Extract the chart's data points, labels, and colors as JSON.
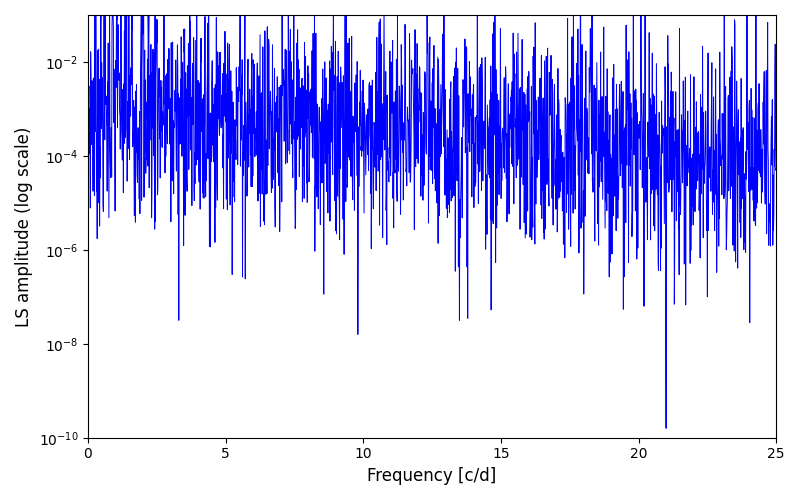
{
  "line_color": "#0000ff",
  "xlabel": "Frequency [c/d]",
  "ylabel": "LS amplitude (log scale)",
  "xlim": [
    0,
    25
  ],
  "ylim_log": [
    -10,
    -1
  ],
  "freq_min": 0.0,
  "freq_max": 25.0,
  "n_points": 2000,
  "seed": 7,
  "background_color": "#ffffff",
  "linewidth": 0.7
}
